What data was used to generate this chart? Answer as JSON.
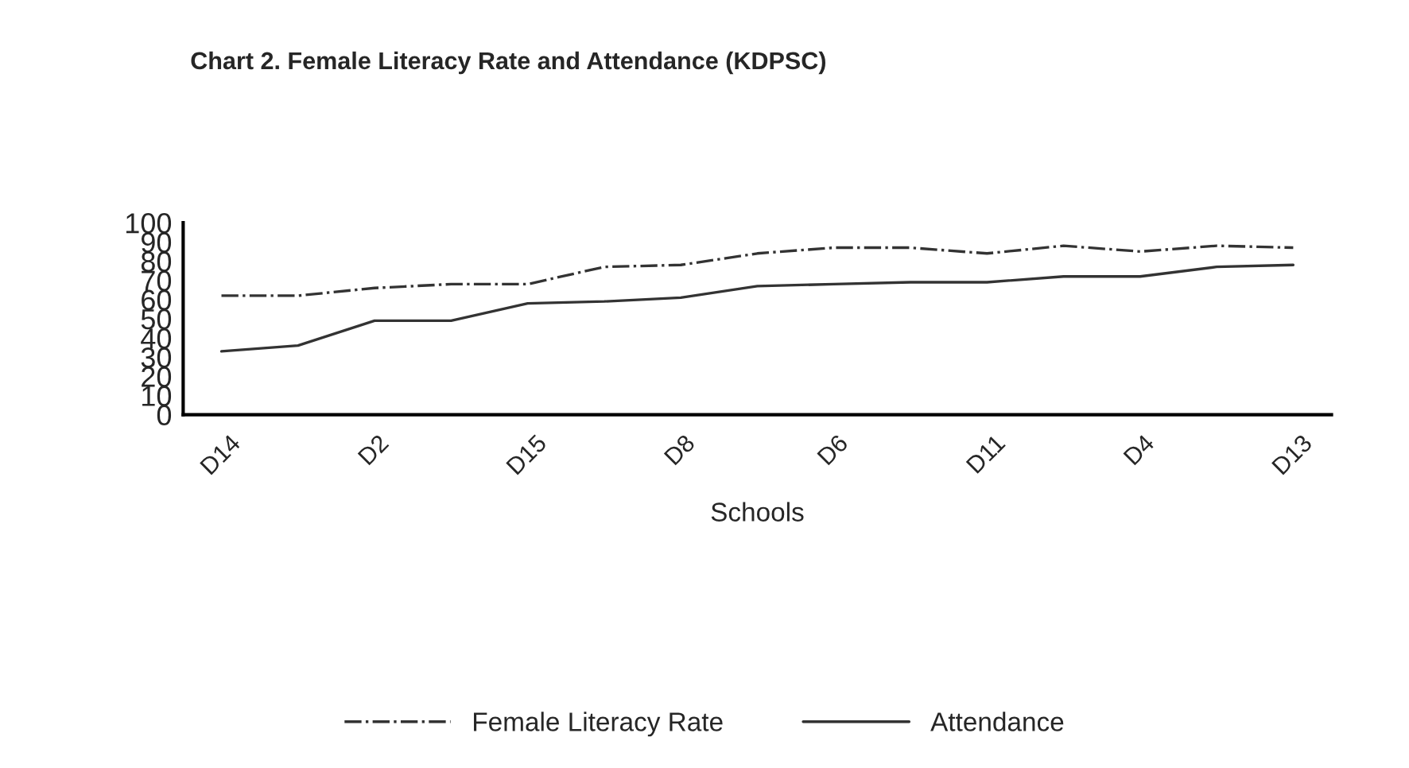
{
  "chart_data": {
    "type": "line",
    "title": "Chart 2. Female Literacy Rate and Attendance (KDPSC)",
    "xlabel": "Schools",
    "categories": [
      "D14",
      null,
      "D2",
      null,
      "D15",
      null,
      "D8",
      null,
      "D6",
      null,
      "D11",
      null,
      "D4",
      null,
      "D13"
    ],
    "series": [
      {
        "name": "Female Literacy Rate",
        "color": "#333333",
        "line_style": "dashdot",
        "values": [
          62,
          62,
          66,
          68,
          68,
          77,
          78,
          84,
          87,
          87,
          84,
          88,
          85,
          88,
          87
        ]
      },
      {
        "name": "Attendance",
        "color": "#333333",
        "line_style": "solid",
        "values": [
          33,
          36,
          49,
          49,
          58,
          59,
          61,
          67,
          68,
          69,
          69,
          72,
          72,
          77,
          78
        ]
      }
    ],
    "ylim": [
      0,
      100
    ],
    "yticks": [
      0,
      10,
      20,
      30,
      40,
      50,
      60,
      70,
      80,
      90,
      100
    ],
    "grid": false,
    "legend": "bottom",
    "marker": "none"
  }
}
